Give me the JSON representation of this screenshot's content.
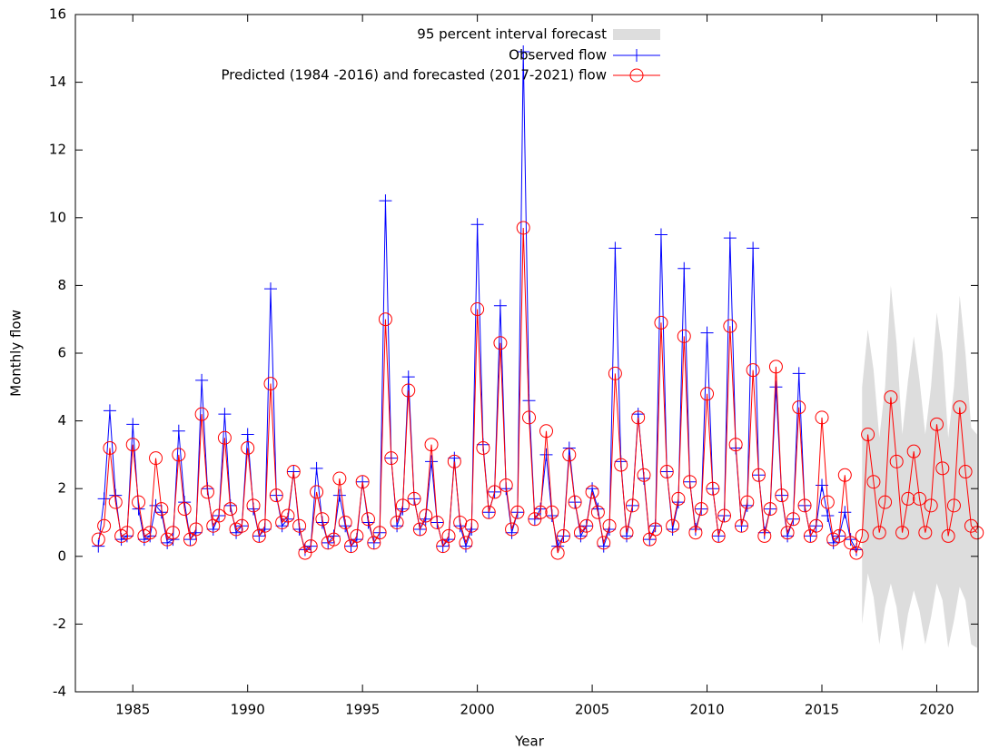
{
  "chart_data": {
    "type": "line",
    "xlabel": "Year",
    "ylabel": "Monthly flow",
    "xlim": [
      1982.5,
      2021.8
    ],
    "ylim": [
      -4,
      16
    ],
    "xticks": [
      1985,
      1990,
      1995,
      2000,
      2005,
      2010,
      2015,
      2020
    ],
    "yticks": [
      -4,
      -2,
      0,
      2,
      4,
      6,
      8,
      10,
      12,
      14,
      16
    ],
    "legend": "top-center",
    "grid": false,
    "band": {
      "name": "95 percent interval forecast",
      "color": "#dddddd",
      "x": [
        2016.75,
        2017,
        2017.25,
        2017.5,
        2017.75,
        2018,
        2018.25,
        2018.5,
        2018.75,
        2019,
        2019.25,
        2019.5,
        2019.75,
        2020,
        2020.25,
        2020.5,
        2020.75,
        2021,
        2021.25,
        2021.5,
        2021.75
      ],
      "upper": [
        5.0,
        6.7,
        5.5,
        3.5,
        5.0,
        8.0,
        6.3,
        3.6,
        5.2,
        6.5,
        5.2,
        3.6,
        5.0,
        7.2,
        6.0,
        3.5,
        5.0,
        7.7,
        6.0,
        3.8,
        3.6
      ],
      "lower": [
        -2.0,
        -0.5,
        -1.2,
        -2.6,
        -1.5,
        -0.8,
        -1.5,
        -2.8,
        -1.7,
        -1.0,
        -1.6,
        -2.6,
        -1.8,
        -0.8,
        -1.3,
        -2.7,
        -1.9,
        -0.9,
        -1.3,
        -2.6,
        -2.7
      ]
    },
    "series": [
      {
        "name": "Observed flow",
        "color": "#0000ff",
        "marker": "plus",
        "x": [
          1983.5,
          1983.75,
          1984,
          1984.25,
          1984.5,
          1984.75,
          1985,
          1985.25,
          1985.5,
          1985.75,
          1986,
          1986.25,
          1986.5,
          1986.75,
          1987,
          1987.25,
          1987.5,
          1987.75,
          1988,
          1988.25,
          1988.5,
          1988.75,
          1989,
          1989.25,
          1989.5,
          1989.75,
          1990,
          1990.25,
          1990.5,
          1990.75,
          1991,
          1991.25,
          1991.5,
          1991.75,
          1992,
          1992.25,
          1992.5,
          1992.75,
          1993,
          1993.25,
          1993.5,
          1993.75,
          1994,
          1994.25,
          1994.5,
          1994.75,
          1995,
          1995.25,
          1995.5,
          1995.75,
          1996,
          1996.25,
          1996.5,
          1996.75,
          1997,
          1997.25,
          1997.5,
          1997.75,
          1998,
          1998.25,
          1998.5,
          1998.75,
          1999,
          1999.25,
          1999.5,
          1999.75,
          2000,
          2000.25,
          2000.5,
          2000.75,
          2001,
          2001.25,
          2001.5,
          2001.75,
          2002,
          2002.25,
          2002.5,
          2002.75,
          2003,
          2003.25,
          2003.5,
          2003.75,
          2004,
          2004.25,
          2004.5,
          2004.75,
          2005,
          2005.25,
          2005.5,
          2005.75,
          2006,
          2006.25,
          2006.5,
          2006.75,
          2007,
          2007.25,
          2007.5,
          2007.75,
          2008,
          2008.25,
          2008.5,
          2008.75,
          2009,
          2009.25,
          2009.5,
          2009.75,
          2010,
          2010.25,
          2010.5,
          2010.75,
          2011,
          2011.25,
          2011.5,
          2011.75,
          2012,
          2012.25,
          2012.5,
          2012.75,
          2013,
          2013.25,
          2013.5,
          2013.75,
          2014,
          2014.25,
          2014.5,
          2014.75,
          2015,
          2015.25,
          2015.5,
          2015.75,
          2016,
          2016.25,
          2016.5
        ],
        "values": [
          0.3,
          1.7,
          4.3,
          1.8,
          0.5,
          0.6,
          3.9,
          1.4,
          0.5,
          0.6,
          1.5,
          1.3,
          0.4,
          0.5,
          3.7,
          1.6,
          0.5,
          0.7,
          5.2,
          2.0,
          0.8,
          1.2,
          4.2,
          1.5,
          0.7,
          0.9,
          3.6,
          1.4,
          0.6,
          0.8,
          7.9,
          1.8,
          0.9,
          1.1,
          2.5,
          0.8,
          0.2,
          0.3,
          2.6,
          1.0,
          0.4,
          0.6,
          1.8,
          0.9,
          0.3,
          0.5,
          2.2,
          1.0,
          0.4,
          0.7,
          10.5,
          2.9,
          0.9,
          1.4,
          5.3,
          1.7,
          0.8,
          1.1,
          2.8,
          1.0,
          0.3,
          0.5,
          2.9,
          0.9,
          0.3,
          0.8,
          9.8,
          3.3,
          1.3,
          1.9,
          7.4,
          2.0,
          0.7,
          1.3,
          14.9,
          4.6,
          1.1,
          1.4,
          3.0,
          1.2,
          0.3,
          0.6,
          3.2,
          1.6,
          0.6,
          0.9,
          2.0,
          1.4,
          0.3,
          0.8,
          9.1,
          2.8,
          0.6,
          1.5,
          4.2,
          2.3,
          0.5,
          0.9,
          9.5,
          2.5,
          0.8,
          1.6,
          8.5,
          2.2,
          0.8,
          1.4,
          6.6,
          2.0,
          0.6,
          1.2,
          9.4,
          3.2,
          0.9,
          1.5,
          9.1,
          2.4,
          0.7,
          1.4,
          5.0,
          1.8,
          0.6,
          1.1,
          5.4,
          1.5,
          0.6,
          0.9,
          2.1,
          1.2,
          0.4,
          0.6,
          1.3,
          0.5,
          0.2
        ]
      },
      {
        "name": "Predicted (1984 -2016) and forecasted (2017-2021) flow",
        "color": "#ff0000",
        "marker": "circle",
        "x": [
          1983.5,
          1983.75,
          1984,
          1984.25,
          1984.5,
          1984.75,
          1985,
          1985.25,
          1985.5,
          1985.75,
          1986,
          1986.25,
          1986.5,
          1986.75,
          1987,
          1987.25,
          1987.5,
          1987.75,
          1988,
          1988.25,
          1988.5,
          1988.75,
          1989,
          1989.25,
          1989.5,
          1989.75,
          1990,
          1990.25,
          1990.5,
          1990.75,
          1991,
          1991.25,
          1991.5,
          1991.75,
          1992,
          1992.25,
          1992.5,
          1992.75,
          1993,
          1993.25,
          1993.5,
          1993.75,
          1994,
          1994.25,
          1994.5,
          1994.75,
          1995,
          1995.25,
          1995.5,
          1995.75,
          1996,
          1996.25,
          1996.5,
          1996.75,
          1997,
          1997.25,
          1997.5,
          1997.75,
          1998,
          1998.25,
          1998.5,
          1998.75,
          1999,
          1999.25,
          1999.5,
          1999.75,
          2000,
          2000.25,
          2000.5,
          2000.75,
          2001,
          2001.25,
          2001.5,
          2001.75,
          2002,
          2002.25,
          2002.5,
          2002.75,
          2003,
          2003.25,
          2003.5,
          2003.75,
          2004,
          2004.25,
          2004.5,
          2004.75,
          2005,
          2005.25,
          2005.5,
          2005.75,
          2006,
          2006.25,
          2006.5,
          2006.75,
          2007,
          2007.25,
          2007.5,
          2007.75,
          2008,
          2008.25,
          2008.5,
          2008.75,
          2009,
          2009.25,
          2009.5,
          2009.75,
          2010,
          2010.25,
          2010.5,
          2010.75,
          2011,
          2011.25,
          2011.5,
          2011.75,
          2012,
          2012.25,
          2012.5,
          2012.75,
          2013,
          2013.25,
          2013.5,
          2013.75,
          2014,
          2014.25,
          2014.5,
          2014.75,
          2015,
          2015.25,
          2015.5,
          2015.75,
          2016,
          2016.25,
          2016.5,
          2016.75,
          2017,
          2017.25,
          2017.5,
          2017.75,
          2018,
          2018.25,
          2018.5,
          2018.75,
          2019,
          2019.25,
          2019.5,
          2019.75,
          2020,
          2020.25,
          2020.5,
          2020.75,
          2021,
          2021.25,
          2021.5,
          2021.75
        ],
        "values": [
          0.5,
          0.9,
          3.2,
          1.6,
          0.6,
          0.7,
          3.3,
          1.6,
          0.6,
          0.7,
          2.9,
          1.4,
          0.5,
          0.7,
          3.0,
          1.4,
          0.5,
          0.8,
          4.2,
          1.9,
          0.9,
          1.2,
          3.5,
          1.4,
          0.8,
          0.9,
          3.2,
          1.5,
          0.6,
          0.9,
          5.1,
          1.8,
          1.0,
          1.2,
          2.5,
          0.9,
          0.1,
          0.3,
          1.9,
          1.1,
          0.4,
          0.5,
          2.3,
          1.0,
          0.3,
          0.6,
          2.2,
          1.1,
          0.4,
          0.7,
          7.0,
          2.9,
          1.0,
          1.5,
          4.9,
          1.7,
          0.8,
          1.2,
          3.3,
          1.0,
          0.3,
          0.6,
          2.8,
          1.0,
          0.4,
          0.9,
          7.3,
          3.2,
          1.3,
          1.9,
          6.3,
          2.1,
          0.8,
          1.3,
          9.7,
          4.1,
          1.1,
          1.3,
          3.7,
          1.3,
          0.1,
          0.6,
          3.0,
          1.6,
          0.7,
          0.9,
          1.9,
          1.3,
          0.4,
          0.9,
          5.4,
          2.7,
          0.7,
          1.5,
          4.1,
          2.4,
          0.5,
          0.8,
          6.9,
          2.5,
          0.9,
          1.7,
          6.5,
          2.2,
          0.7,
          1.4,
          4.8,
          2.0,
          0.6,
          1.2,
          6.8,
          3.3,
          0.9,
          1.6,
          5.5,
          2.4,
          0.6,
          1.4,
          5.6,
          1.8,
          0.7,
          1.1,
          4.4,
          1.5,
          0.6,
          0.9,
          4.1,
          1.6,
          0.5,
          0.6,
          2.4,
          0.4,
          0.1,
          0.6,
          3.6,
          2.2,
          0.7,
          1.6,
          4.7,
          2.8,
          0.7,
          1.7,
          3.1,
          1.7,
          0.7,
          1.5,
          3.9,
          2.6,
          0.6,
          1.5,
          4.4,
          2.5,
          0.9,
          0.7
        ]
      }
    ]
  }
}
